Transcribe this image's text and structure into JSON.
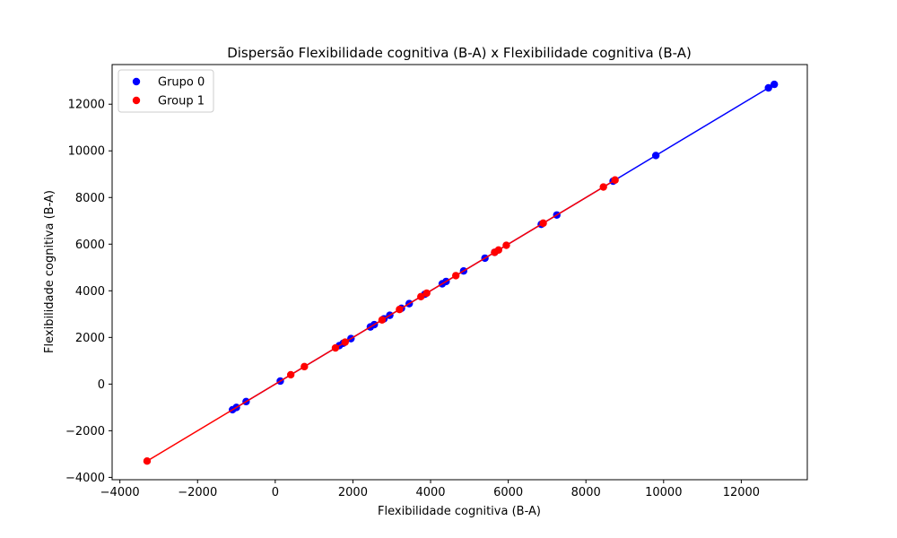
{
  "chart_data": {
    "type": "scatter",
    "title": "Dispersão Flexibilidade cognitiva (B-A) x Flexibilidade cognitiva (B-A)",
    "xlabel": "Flexibilidade cognitiva (B-A)",
    "ylabel": "Flexibilidade cognitiva (B-A)",
    "xlim": [
      -4200,
      13700
    ],
    "ylim": [
      -4100,
      13700
    ],
    "xticks": [
      -4000,
      -2000,
      0,
      2000,
      4000,
      6000,
      8000,
      10000,
      12000
    ],
    "yticks": [
      -4000,
      -2000,
      0,
      2000,
      4000,
      6000,
      8000,
      10000,
      12000
    ],
    "xtick_labels": [
      "−4000",
      "−2000",
      "0",
      "2000",
      "4000",
      "6000",
      "8000",
      "10000",
      "12000"
    ],
    "ytick_labels": [
      "−4000",
      "−2000",
      "0",
      "2000",
      "4000",
      "6000",
      "8000",
      "10000",
      "12000"
    ],
    "grid": false,
    "legend_position": "top-left",
    "series": [
      {
        "name": "Grupo 0",
        "color": "#0000ff",
        "has_fit_line": true,
        "points": [
          [
            -1100,
            -1100
          ],
          [
            -1000,
            -1000
          ],
          [
            -750,
            -750
          ],
          [
            130,
            130
          ],
          [
            1650,
            1650
          ],
          [
            1750,
            1750
          ],
          [
            1950,
            1950
          ],
          [
            2450,
            2450
          ],
          [
            2550,
            2550
          ],
          [
            2800,
            2800
          ],
          [
            2950,
            2950
          ],
          [
            3250,
            3250
          ],
          [
            3450,
            3450
          ],
          [
            3850,
            3850
          ],
          [
            4300,
            4300
          ],
          [
            4400,
            4400
          ],
          [
            4850,
            4850
          ],
          [
            5400,
            5400
          ],
          [
            5650,
            5650
          ],
          [
            6850,
            6850
          ],
          [
            7250,
            7250
          ],
          [
            8700,
            8700
          ],
          [
            9800,
            9800
          ],
          [
            12700,
            12700
          ],
          [
            12850,
            12850
          ]
        ]
      },
      {
        "name": "Group 1",
        "color": "#ff0000",
        "has_fit_line": true,
        "points": [
          [
            -3300,
            -3300
          ],
          [
            400,
            400
          ],
          [
            750,
            750
          ],
          [
            1550,
            1550
          ],
          [
            1800,
            1800
          ],
          [
            2750,
            2750
          ],
          [
            3200,
            3200
          ],
          [
            3750,
            3750
          ],
          [
            3900,
            3900
          ],
          [
            4650,
            4650
          ],
          [
            5650,
            5650
          ],
          [
            5750,
            5750
          ],
          [
            5950,
            5950
          ],
          [
            6900,
            6900
          ],
          [
            8450,
            8450
          ],
          [
            8750,
            8750
          ]
        ]
      }
    ]
  }
}
